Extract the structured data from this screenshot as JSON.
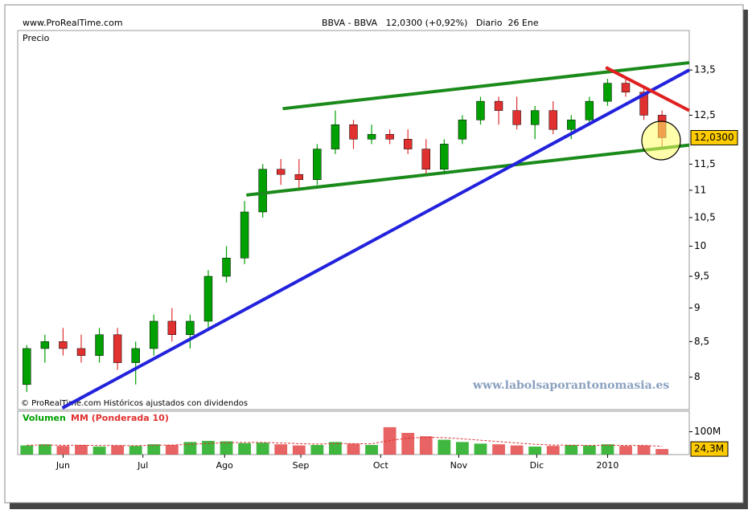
{
  "chart_data": [
    {
      "type": "candlestick",
      "source": "www.ProRealTime.com",
      "title": "BBVA - BBVA   12,0300 (+0,92%)   Diario  26 Ene",
      "ylabel": "Precio",
      "note": "© ProRealTime.com Históricos ajustados con dividendos",
      "watermark": "www.labolsaporantonomasia.es",
      "categories": [
        null,
        null,
        null,
        null,
        null,
        null,
        null,
        null,
        null,
        null,
        null,
        null,
        null,
        null,
        null,
        null,
        null,
        null,
        null,
        null,
        null,
        null,
        null,
        null,
        null,
        null,
        null,
        null,
        null,
        null,
        null,
        null,
        null,
        null,
        null,
        null
      ],
      "xlim": [
        -0.5,
        36.5
      ],
      "xticks": [
        {
          "value": 2,
          "label": "Jun"
        },
        {
          "value": 6.4,
          "label": "Jul"
        },
        {
          "value": 10.9,
          "label": "Ago"
        },
        {
          "value": 15.1,
          "label": "Sep"
        },
        {
          "value": 19.5,
          "label": "Oct"
        },
        {
          "value": 23.8,
          "label": "Nov"
        },
        {
          "value": 28.1,
          "label": "Dic"
        },
        {
          "value": 32,
          "label": "2010"
        }
      ],
      "ylim": [
        7.57,
        14.44
      ],
      "log_scale": true,
      "yticks": [
        8,
        {
          "value": 8.5,
          "label": "8,5"
        },
        9,
        {
          "value": 9.5,
          "label": "9,5"
        },
        10,
        {
          "value": 10.5,
          "label": "10,5"
        },
        11,
        {
          "value": 11.5,
          "label": "11,5"
        },
        {
          "value": 12.5,
          "label": "12,5"
        },
        {
          "value": 13.5,
          "label": "13,5"
        }
      ],
      "open": [
        7.9,
        8.4,
        8.5,
        8.4,
        8.3,
        8.6,
        8.2,
        8.4,
        8.8,
        8.6,
        8.8,
        9.5,
        9.8,
        10.6,
        11.4,
        11.3,
        11.2,
        11.8,
        12.3,
        12.0,
        12.1,
        12.0,
        11.8,
        11.4,
        12.0,
        12.4,
        12.8,
        12.6,
        12.3,
        12.6,
        12.2,
        12.4,
        12.8,
        13.2,
        13.0,
        12.5
      ],
      "high": [
        8.45,
        8.6,
        8.7,
        8.6,
        8.7,
        8.7,
        8.5,
        8.9,
        9.0,
        8.9,
        9.6,
        10.0,
        10.8,
        11.5,
        11.6,
        11.6,
        11.9,
        12.6,
        12.4,
        12.3,
        12.2,
        12.2,
        12.0,
        12.0,
        12.5,
        12.9,
        12.9,
        12.9,
        12.7,
        12.8,
        12.5,
        12.9,
        13.3,
        13.3,
        13.1,
        12.6
      ],
      "low": [
        7.8,
        8.2,
        8.3,
        8.2,
        8.2,
        8.1,
        7.9,
        8.3,
        8.5,
        8.4,
        8.7,
        9.4,
        9.7,
        10.5,
        11.1,
        11.0,
        11.1,
        11.7,
        11.8,
        11.9,
        11.9,
        11.7,
        11.3,
        11.3,
        11.9,
        12.3,
        12.3,
        12.2,
        12.0,
        12.1,
        12.0,
        12.3,
        12.7,
        12.9,
        12.4,
        11.8
      ],
      "close": [
        8.4,
        8.5,
        8.4,
        8.3,
        8.6,
        8.2,
        8.4,
        8.8,
        8.6,
        8.8,
        9.5,
        9.8,
        10.6,
        11.4,
        11.3,
        11.2,
        11.8,
        12.3,
        12.0,
        12.1,
        12.0,
        11.8,
        11.4,
        11.9,
        12.4,
        12.8,
        12.6,
        12.3,
        12.6,
        12.2,
        12.4,
        12.8,
        13.2,
        13.0,
        12.5,
        12.03
      ],
      "up_color": "#00a000",
      "down_color": "#e03030",
      "last_price": {
        "value": 12.03,
        "label": "12,0300"
      },
      "trendlines": [
        {
          "color": "#1a8a1a",
          "x": [
            14.1,
            36.5
          ],
          "y": [
            12.64,
            13.67
          ]
        },
        {
          "color": "#1a8a1a",
          "x": [
            12.1,
            36.5
          ],
          "y": [
            10.91,
            11.88
          ]
        },
        {
          "color": "#2222dd",
          "x": [
            1.96,
            36.5
          ],
          "y": [
            7.59,
            13.5
          ]
        },
        {
          "color": "#e02020",
          "x": [
            31.9,
            36.5
          ],
          "y": [
            13.56,
            12.6
          ]
        }
      ]
    },
    {
      "type": "bar",
      "ylim": [
        0,
        190000000
      ],
      "yticks": [
        {
          "value": 100000000,
          "label": "100M"
        }
      ],
      "series": [
        {
          "name": "Volumen",
          "color": "#00a000",
          "values": [
            40000000,
            45000000,
            38000000,
            42000000,
            35000000,
            40000000,
            38000000,
            45000000,
            42000000,
            55000000,
            60000000,
            58000000,
            50000000,
            52000000,
            45000000,
            40000000,
            42000000,
            55000000,
            48000000,
            42000000,
            120000000,
            95000000,
            80000000,
            65000000,
            55000000,
            48000000,
            45000000,
            40000000,
            35000000,
            38000000,
            42000000,
            40000000,
            45000000,
            38000000,
            40000000,
            24300000
          ]
        },
        {
          "name": "MM (Ponderada 10)",
          "color": "#e03030",
          "values": [
            41000000,
            42000000,
            41000000,
            41000000,
            40000000,
            40000000,
            39000000,
            41000000,
            42000000,
            45000000,
            49000000,
            52000000,
            53000000,
            53000000,
            51000000,
            48000000,
            46000000,
            48000000,
            48000000,
            47000000,
            62000000,
            72000000,
            76000000,
            74000000,
            69000000,
            63000000,
            57000000,
            51000000,
            45000000,
            42000000,
            41000000,
            40000000,
            41000000,
            40000000,
            40000000,
            36000000
          ]
        }
      ],
      "last_value": {
        "value": 24300000,
        "label": "24,3M"
      }
    }
  ]
}
